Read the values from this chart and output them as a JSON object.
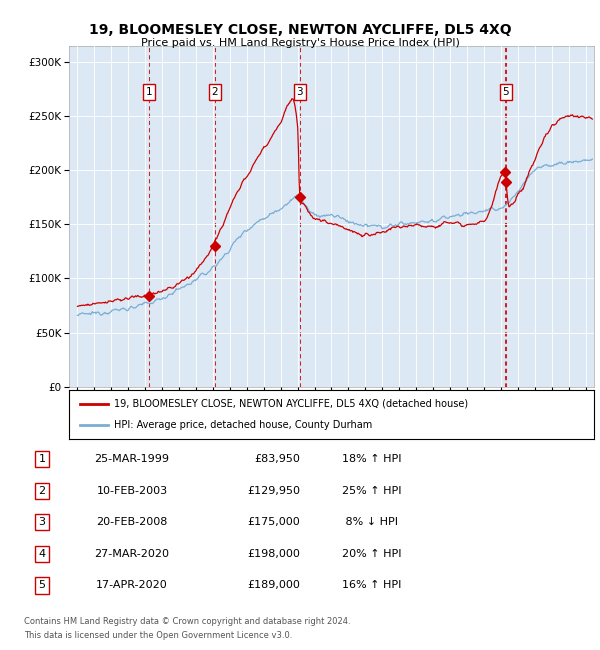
{
  "title": "19, BLOOMESLEY CLOSE, NEWTON AYCLIFFE, DL5 4XQ",
  "subtitle": "Price paid vs. HM Land Registry's House Price Index (HPI)",
  "legend_line1": "19, BLOOMESLEY CLOSE, NEWTON AYCLIFFE, DL5 4XQ (detached house)",
  "legend_line2": "HPI: Average price, detached house, County Durham",
  "footnote1": "Contains HM Land Registry data © Crown copyright and database right 2024.",
  "footnote2": "This data is licensed under the Open Government Licence v3.0.",
  "xlim_start": 1994.5,
  "xlim_end": 2025.5,
  "ylim_min": 0,
  "ylim_max": 315000,
  "background_color": "#dce9f5",
  "red_line_color": "#cc0000",
  "blue_line_color": "#7aadd4",
  "vline_color": "#cc0000",
  "transactions": [
    {
      "date_num": 1999.23,
      "price": 83950,
      "label": "1",
      "show_box": true
    },
    {
      "date_num": 2003.11,
      "price": 129950,
      "label": "2",
      "show_box": true
    },
    {
      "date_num": 2008.13,
      "price": 175000,
      "label": "3",
      "show_box": true
    },
    {
      "date_num": 2020.24,
      "price": 198000,
      "label": "4",
      "show_box": false
    },
    {
      "date_num": 2020.3,
      "price": 189000,
      "label": "5",
      "show_box": true
    }
  ],
  "table_rows": [
    {
      "num": "1",
      "date": "25-MAR-1999",
      "price": "£83,950",
      "hpi": "18% ↑ HPI"
    },
    {
      "num": "2",
      "date": "10-FEB-2003",
      "price": "£129,950",
      "hpi": "25% ↑ HPI"
    },
    {
      "num": "3",
      "date": "20-FEB-2008",
      "price": "£175,000",
      "hpi": " 8% ↓ HPI"
    },
    {
      "num": "4",
      "date": "27-MAR-2020",
      "price": "£198,000",
      "hpi": "20% ↑ HPI"
    },
    {
      "num": "5",
      "date": "17-APR-2020",
      "price": "£189,000",
      "hpi": "16% ↑ HPI"
    }
  ],
  "yticks": [
    0,
    50000,
    100000,
    150000,
    200000,
    250000,
    300000
  ],
  "ytick_labels": [
    "£0",
    "£50K",
    "£100K",
    "£150K",
    "£200K",
    "£250K",
    "£300K"
  ]
}
